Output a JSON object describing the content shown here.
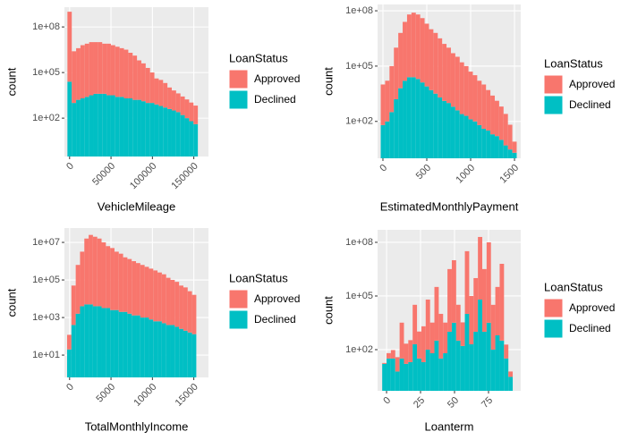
{
  "chart_data": [
    {
      "type": "histogram",
      "x_label": "VehicleMileage",
      "y_label": "count",
      "legend_title": "LoanStatus",
      "legend": "right",
      "log_y": true,
      "grid": true,
      "bins": [
        -2625,
        2625,
        7875,
        13125,
        18375,
        23625,
        28875,
        34125,
        39375,
        44625,
        49875,
        55125,
        60375,
        65625,
        70875,
        76125,
        81375,
        86625,
        91875,
        97125,
        102375,
        107625,
        112875,
        118125,
        123375,
        128625,
        133875,
        139125,
        144375,
        149625,
        154875
      ],
      "series": [
        {
          "name": "Approved",
          "color": "#F8766D",
          "values": [
            1000000000,
            2500000,
            4000000,
            6300000,
            7900000,
            10000000,
            10000000,
            10000000,
            7900000,
            7900000,
            6300000,
            5000000,
            4000000,
            3200000,
            2000000,
            1300000,
            630000,
            400000,
            200000,
            100000,
            40000,
            32000,
            20000,
            10000,
            6300,
            4000,
            2500,
            1600,
            1000,
            630
          ]
        },
        {
          "name": "Declined",
          "color": "#00BFC4",
          "values": [
            25000,
            1000,
            1600,
            2000,
            2500,
            3200,
            4000,
            4000,
            4000,
            3200,
            3200,
            2500,
            2500,
            2000,
            2000,
            1600,
            1600,
            1300,
            1000,
            1000,
            790,
            630,
            500,
            400,
            320,
            250,
            160,
            100,
            63,
            40
          ]
        }
      ],
      "xlim": [
        -6250,
        167700
      ],
      "xticks": [
        0,
        50000,
        100000,
        150000
      ],
      "ylim": [
        0.3,
        2000000000
      ],
      "yticks": [
        {
          "value": 100,
          "label": "1e+02"
        },
        {
          "value": 100000,
          "label": "1e+05"
        },
        {
          "value": 100000000,
          "label": "1e+08"
        }
      ]
    },
    {
      "type": "histogram",
      "x_label": "EstimatedMonthlyPayment",
      "y_label": "count",
      "legend_title": "LoanStatus",
      "legend": "right",
      "log_y": true,
      "grid": true,
      "bins": [
        -25,
        25,
        75,
        125,
        175,
        225,
        275,
        325,
        375,
        425,
        475,
        525,
        575,
        625,
        675,
        725,
        775,
        825,
        875,
        925,
        975,
        1025,
        1075,
        1125,
        1175,
        1225,
        1275,
        1325,
        1375,
        1425,
        1475,
        1525
      ],
      "series": [
        {
          "name": "Approved",
          "color": "#F8766D",
          "values": [
            10000,
            16000,
            100000,
            1000000,
            6300000,
            25000000,
            63000000,
            79000000,
            63000000,
            40000000,
            20000000,
            10000000,
            6300000,
            3200000,
            1600000,
            1000000,
            500000,
            320000,
            160000,
            100000,
            50000,
            32000,
            16000,
            10000,
            5000,
            2500,
            1300,
            630,
            250,
            63,
            6
          ]
        },
        {
          "name": "Declined",
          "color": "#00BFC4",
          "values": [
            63,
            100,
            320,
            1600,
            6300,
            16000,
            25000,
            25000,
            20000,
            13000,
            7900,
            5000,
            3200,
            2000,
            1300,
            1000,
            630,
            400,
            250,
            200,
            130,
            100,
            63,
            40,
            32,
            20,
            16,
            10,
            5,
            3,
            2
          ]
        }
      ],
      "xlim": [
        -61,
        1571
      ],
      "xticks": [
        0,
        500,
        1000,
        1500
      ],
      "ylim": [
        1,
        220000000
      ],
      "yticks": [
        {
          "value": 100,
          "label": "1e+02"
        },
        {
          "value": 100000,
          "label": "1e+05"
        },
        {
          "value": 100000000,
          "label": "1e+08"
        }
      ]
    },
    {
      "type": "histogram",
      "x_label": "TotalMonthlyIncome",
      "y_label": "count",
      "legend_title": "LoanStatus",
      "legend": "right",
      "log_y": true,
      "grid": true,
      "bins": [
        -300,
        220,
        740,
        1260,
        1780,
        2300,
        2820,
        3340,
        3860,
        4380,
        4900,
        5420,
        5940,
        6460,
        6980,
        7500,
        8020,
        8540,
        9060,
        9580,
        10100,
        10620,
        11140,
        11660,
        12180,
        12700,
        13220,
        13740,
        14260,
        14780,
        15300
      ],
      "series": [
        {
          "name": "Approved",
          "color": "#F8766D",
          "values": [
            100,
            50000,
            630000,
            3200000,
            16000000,
            25000000,
            20000000,
            16000000,
            10000000,
            6300000,
            5000000,
            3200000,
            2500000,
            1600000,
            1300000,
            1000000,
            790000,
            630000,
            500000,
            400000,
            320000,
            250000,
            200000,
            130000,
            100000,
            79000,
            50000,
            40000,
            25000,
            16000
          ]
        },
        {
          "name": "Declined",
          "color": "#00BFC4",
          "values": [
            20,
            400,
            1600,
            4000,
            5000,
            5000,
            4000,
            4000,
            3200,
            3200,
            2500,
            2500,
            2000,
            2000,
            1600,
            1300,
            1300,
            1000,
            1000,
            790,
            630,
            630,
            500,
            400,
            400,
            320,
            250,
            200,
            160,
            130
          ]
        }
      ],
      "xlim": [
        -625,
        16770
      ],
      "xticks": [
        0,
        5000,
        10000,
        15000
      ],
      "ylim": [
        0.65,
        58000000
      ],
      "yticks": [
        {
          "value": 10,
          "label": "1e+01"
        },
        {
          "value": 1000,
          "label": "1e+03"
        },
        {
          "value": 100000,
          "label": "1e+05"
        },
        {
          "value": 10000000,
          "label": "1e+07"
        }
      ]
    },
    {
      "type": "histogram",
      "x_label": "Loanterm",
      "y_label": "count",
      "legend_title": "LoanStatus",
      "legend": "right",
      "log_y": true,
      "grid": true,
      "bins": [
        -3.2,
        0,
        3.2,
        6.4,
        9.6,
        12.8,
        16,
        19.2,
        22.4,
        25.6,
        28.8,
        32,
        35.2,
        38.4,
        41.6,
        44.8,
        48,
        51.2,
        54.4,
        57.6,
        60.8,
        64,
        67.2,
        70.4,
        73.6,
        76.8,
        80,
        83.2,
        86.4,
        89.6,
        92.8
      ],
      "series": [
        {
          "name": "Approved",
          "color": "#F8766D",
          "values": [
            2,
            32,
            63,
            32,
            3200,
            200,
            320,
            32000,
            1000,
            2000,
            63000,
            3200,
            320000,
            10000,
            3200,
            3200000,
            10000000,
            32000,
            3200,
            32000000,
            100000,
            1000000,
            200000000,
            3200000,
            100000000,
            32000,
            320000,
            6300000,
            160,
            3
          ]
        },
        {
          "name": "Declined",
          "color": "#00BFC4",
          "values": [
            16,
            32,
            32,
            6,
            32,
            16,
            20,
            200,
            32,
            20,
            100,
            63,
            320,
            32,
            63,
            1000,
            3200,
            320,
            160,
            10000,
            200,
            1000,
            63000,
            1000,
            3200,
            100,
            630,
            320,
            32,
            3
          ]
        }
      ],
      "xlim": [
        -6.6,
        98.7
      ],
      "xticks": [
        0,
        25,
        50,
        75
      ],
      "ylim": [
        0.5,
        500000000
      ],
      "yticks": [
        {
          "value": 100,
          "label": "1e+02"
        },
        {
          "value": 100000,
          "label": "1e+05"
        },
        {
          "value": 100000000,
          "label": "1e+08"
        }
      ]
    }
  ]
}
